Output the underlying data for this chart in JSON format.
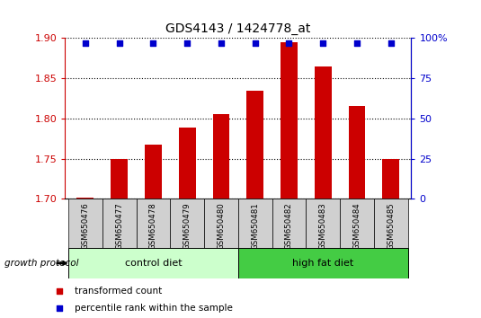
{
  "title": "GDS4143 / 1424778_at",
  "categories": [
    "GSM650476",
    "GSM650477",
    "GSM650478",
    "GSM650479",
    "GSM650480",
    "GSM650481",
    "GSM650482",
    "GSM650483",
    "GSM650484",
    "GSM650485"
  ],
  "bar_values": [
    1.701,
    1.75,
    1.767,
    1.789,
    1.806,
    1.834,
    1.895,
    1.865,
    1.815,
    1.75
  ],
  "percentile_values": [
    97,
    97,
    97,
    97,
    97,
    97,
    97,
    97,
    97,
    97
  ],
  "bar_color": "#cc0000",
  "dot_color": "#0000cc",
  "ylim_left": [
    1.7,
    1.9
  ],
  "ylim_right": [
    0,
    100
  ],
  "yticks_left": [
    1.7,
    1.75,
    1.8,
    1.85,
    1.9
  ],
  "yticks_right": [
    0,
    25,
    50,
    75,
    100
  ],
  "group1_label": "control diet",
  "group2_label": "high fat diet",
  "group1_color": "#ccffcc",
  "group2_color": "#44cc44",
  "protocol_label": "growth protocol",
  "legend_bar_label": "transformed count",
  "legend_dot_label": "percentile rank within the sample",
  "group1_indices": [
    0,
    1,
    2,
    3,
    4
  ],
  "group2_indices": [
    5,
    6,
    7,
    8,
    9
  ],
  "bar_bottom": 1.7,
  "tick_color_left": "#cc0000",
  "tick_color_right": "#0000cc",
  "bg_color_xticklabels": "#d0d0d0",
  "bar_width": 0.5
}
